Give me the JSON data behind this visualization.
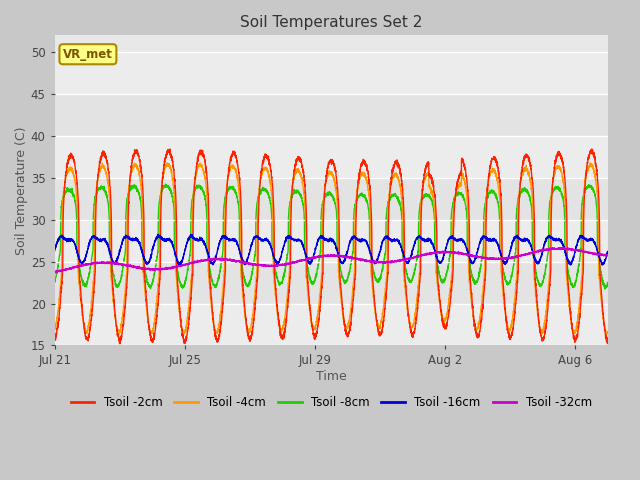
{
  "title": "Soil Temperatures Set 2",
  "xlabel": "Time",
  "ylabel": "Soil Temperature (C)",
  "ylim": [
    15,
    52
  ],
  "yticks": [
    15,
    20,
    25,
    30,
    35,
    40,
    45,
    50
  ],
  "fig_bg": "#c8c8c8",
  "plot_bg": "#e8e8e8",
  "line_colors": {
    "2cm": "#ff2200",
    "4cm": "#ff9900",
    "8cm": "#22cc00",
    "16cm": "#0000dd",
    "32cm": "#cc00cc"
  },
  "legend_labels": [
    "Tsoil -2cm",
    "Tsoil -4cm",
    "Tsoil -8cm",
    "Tsoil -16cm",
    "Tsoil -32cm"
  ],
  "x_tick_labels": [
    "Jul 21",
    "Jul 25",
    "Jul 29",
    "Aug 2",
    "Aug 6"
  ],
  "x_tick_positions": [
    0,
    4,
    8,
    12,
    16
  ],
  "annotation_text": "VR_met",
  "num_days": 17,
  "samples_per_day": 240
}
